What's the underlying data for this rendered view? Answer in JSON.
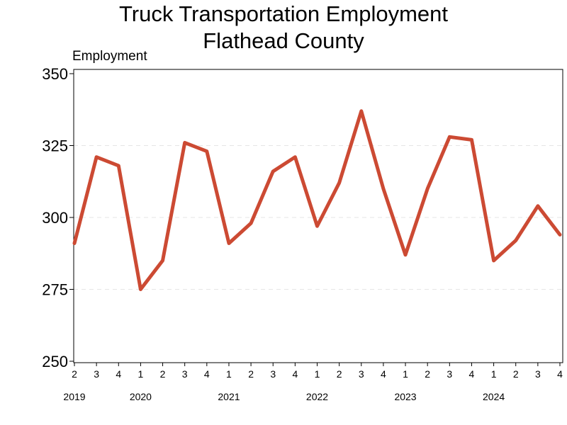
{
  "chart_data": {
    "type": "line",
    "title_line1": "Truck Transportation Employment",
    "title_line2": "Flathead County",
    "ylabel": "Employment",
    "xlabel": "",
    "ylim": [
      250,
      350
    ],
    "yticks": [
      "250",
      "275",
      "300",
      "325",
      "350"
    ],
    "grid": "horizontal dashed",
    "line_color": "#cc4a33",
    "grid_color": "#e6e6e6",
    "x": [
      "2019 Q2",
      "2019 Q3",
      "2019 Q4",
      "2020 Q1",
      "2020 Q2",
      "2020 Q3",
      "2020 Q4",
      "2021 Q1",
      "2021 Q2",
      "2021 Q3",
      "2021 Q4",
      "2022 Q1",
      "2022 Q2",
      "2022 Q3",
      "2022 Q4",
      "2023 Q1",
      "2023 Q2",
      "2023 Q3",
      "2023 Q4",
      "2024 Q1",
      "2024 Q2",
      "2024 Q3",
      "2024 Q4"
    ],
    "quarter_labels": [
      "2",
      "3",
      "4",
      "1",
      "2",
      "3",
      "4",
      "1",
      "2",
      "3",
      "4",
      "1",
      "2",
      "3",
      "4",
      "1",
      "2",
      "3",
      "4",
      "1",
      "2",
      "3",
      "4"
    ],
    "years": [
      {
        "label": "2019",
        "index": 0
      },
      {
        "label": "2020",
        "index": 3
      },
      {
        "label": "2021",
        "index": 7
      },
      {
        "label": "2022",
        "index": 11
      },
      {
        "label": "2023",
        "index": 15
      },
      {
        "label": "2024",
        "index": 19
      }
    ],
    "series": [
      {
        "values": [
          291,
          321,
          318,
          275,
          285,
          326,
          323,
          291,
          298,
          316,
          321,
          297,
          312,
          337,
          310,
          287,
          310,
          328,
          327,
          285,
          292,
          304,
          294
        ]
      }
    ]
  }
}
